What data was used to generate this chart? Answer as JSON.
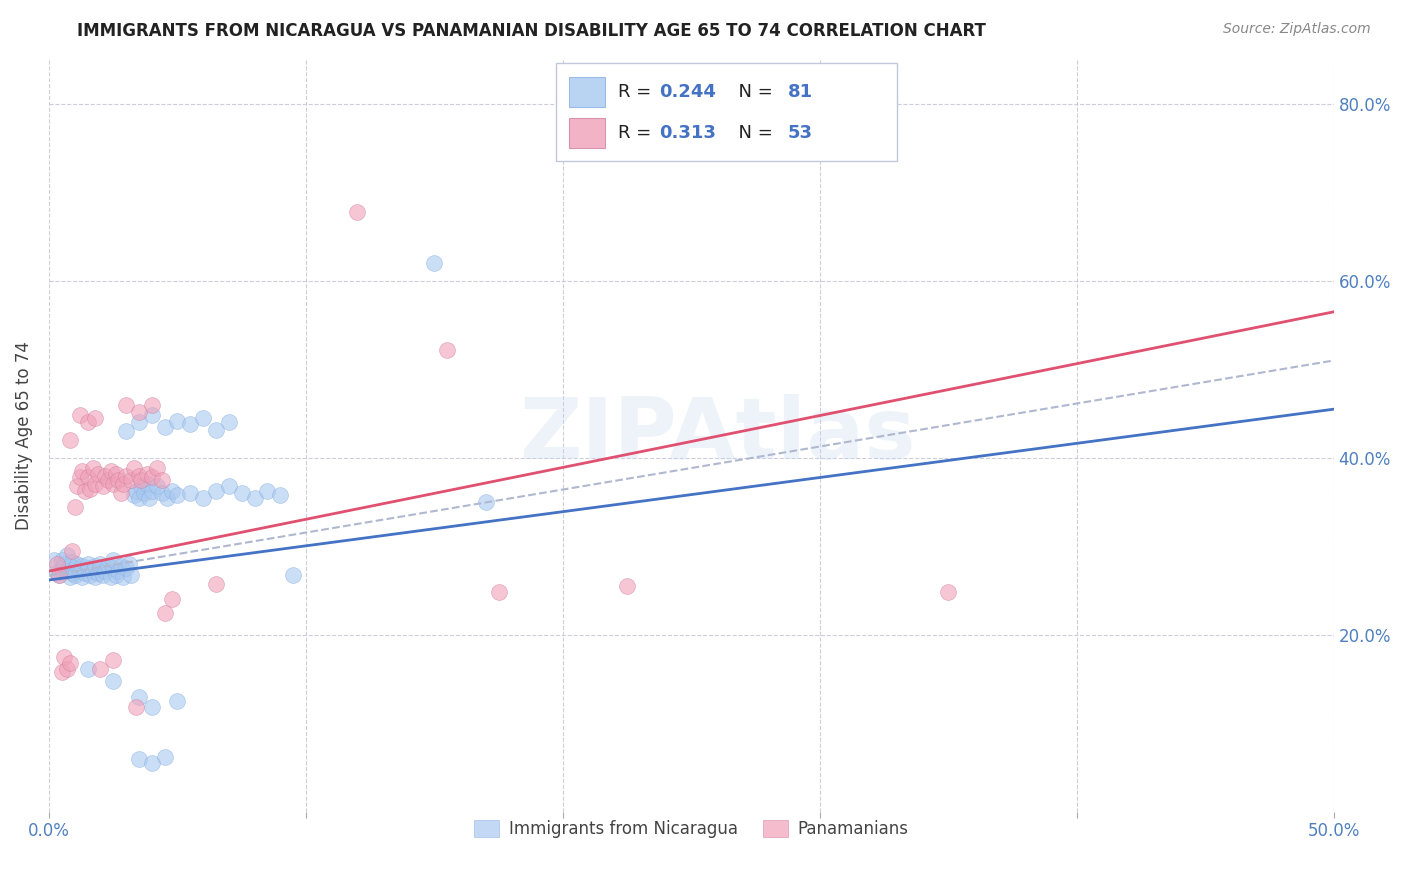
{
  "title": "IMMIGRANTS FROM NICARAGUA VS PANAMANIAN DISABILITY AGE 65 TO 74 CORRELATION CHART",
  "source": "Source: ZipAtlas.com",
  "ylabel_text": "Disability Age 65 to 74",
  "xmin": 0.0,
  "xmax": 0.5,
  "ymin": 0.0,
  "ymax": 0.85,
  "xtick_labels": [
    "0.0%",
    "",
    "",
    "",
    "",
    "50.0%"
  ],
  "xtick_values": [
    0.0,
    0.1,
    0.2,
    0.3,
    0.4,
    0.5
  ],
  "ytick_labels": [
    "20.0%",
    "40.0%",
    "60.0%",
    "80.0%"
  ],
  "ytick_values": [
    0.2,
    0.4,
    0.6,
    0.8
  ],
  "watermark": "ZIPAtlas",
  "blue_color": "#a8c8f0",
  "pink_color": "#f0a0b8",
  "blue_line_color": "#4472c4",
  "pink_line_color": "#e05070",
  "dashed_color": "#b0b8d0",
  "axis_label_color": "#5080c0",
  "grid_color": "#c8c8d8",
  "title_color": "#222222",
  "source_color": "#888888",
  "legend_r_color": "#222222",
  "legend_val_color": "#4472c4",
  "legend_n_color": "#222222",
  "legend_nval_color": "#4472c4",
  "scatter_blue": [
    [
      0.002,
      0.285
    ],
    [
      0.003,
      0.27
    ],
    [
      0.004,
      0.268
    ],
    [
      0.005,
      0.275
    ],
    [
      0.005,
      0.285
    ],
    [
      0.006,
      0.28
    ],
    [
      0.007,
      0.272
    ],
    [
      0.007,
      0.29
    ],
    [
      0.008,
      0.278
    ],
    [
      0.008,
      0.265
    ],
    [
      0.009,
      0.27
    ],
    [
      0.009,
      0.282
    ],
    [
      0.01,
      0.275
    ],
    [
      0.01,
      0.268
    ],
    [
      0.011,
      0.28
    ],
    [
      0.012,
      0.272
    ],
    [
      0.013,
      0.278
    ],
    [
      0.013,
      0.265
    ],
    [
      0.014,
      0.27
    ],
    [
      0.015,
      0.275
    ],
    [
      0.015,
      0.28
    ],
    [
      0.016,
      0.268
    ],
    [
      0.017,
      0.272
    ],
    [
      0.018,
      0.278
    ],
    [
      0.018,
      0.265
    ],
    [
      0.019,
      0.27
    ],
    [
      0.02,
      0.275
    ],
    [
      0.02,
      0.28
    ],
    [
      0.021,
      0.268
    ],
    [
      0.022,
      0.272
    ],
    [
      0.023,
      0.278
    ],
    [
      0.024,
      0.265
    ],
    [
      0.025,
      0.275
    ],
    [
      0.025,
      0.285
    ],
    [
      0.026,
      0.268
    ],
    [
      0.027,
      0.272
    ],
    [
      0.028,
      0.278
    ],
    [
      0.029,
      0.265
    ],
    [
      0.03,
      0.275
    ],
    [
      0.031,
      0.28
    ],
    [
      0.032,
      0.268
    ],
    [
      0.033,
      0.358
    ],
    [
      0.034,
      0.362
    ],
    [
      0.035,
      0.355
    ],
    [
      0.036,
      0.368
    ],
    [
      0.037,
      0.36
    ],
    [
      0.038,
      0.37
    ],
    [
      0.039,
      0.355
    ],
    [
      0.04,
      0.362
    ],
    [
      0.042,
      0.368
    ],
    [
      0.044,
      0.36
    ],
    [
      0.046,
      0.355
    ],
    [
      0.048,
      0.362
    ],
    [
      0.05,
      0.358
    ],
    [
      0.055,
      0.36
    ],
    [
      0.06,
      0.355
    ],
    [
      0.065,
      0.362
    ],
    [
      0.07,
      0.368
    ],
    [
      0.075,
      0.36
    ],
    [
      0.08,
      0.355
    ],
    [
      0.085,
      0.362
    ],
    [
      0.09,
      0.358
    ],
    [
      0.03,
      0.43
    ],
    [
      0.035,
      0.44
    ],
    [
      0.04,
      0.448
    ],
    [
      0.045,
      0.435
    ],
    [
      0.05,
      0.442
    ],
    [
      0.055,
      0.438
    ],
    [
      0.06,
      0.445
    ],
    [
      0.065,
      0.432
    ],
    [
      0.07,
      0.44
    ],
    [
      0.15,
      0.62
    ],
    [
      0.17,
      0.35
    ],
    [
      0.015,
      0.162
    ],
    [
      0.025,
      0.148
    ],
    [
      0.035,
      0.13
    ],
    [
      0.04,
      0.118
    ],
    [
      0.05,
      0.125
    ],
    [
      0.035,
      0.06
    ],
    [
      0.04,
      0.055
    ],
    [
      0.045,
      0.062
    ],
    [
      0.095,
      0.268
    ]
  ],
  "scatter_pink": [
    [
      0.003,
      0.28
    ],
    [
      0.004,
      0.268
    ],
    [
      0.005,
      0.158
    ],
    [
      0.006,
      0.175
    ],
    [
      0.007,
      0.162
    ],
    [
      0.008,
      0.168
    ],
    [
      0.008,
      0.42
    ],
    [
      0.009,
      0.295
    ],
    [
      0.01,
      0.345
    ],
    [
      0.011,
      0.368
    ],
    [
      0.012,
      0.378
    ],
    [
      0.012,
      0.448
    ],
    [
      0.013,
      0.385
    ],
    [
      0.014,
      0.362
    ],
    [
      0.015,
      0.378
    ],
    [
      0.015,
      0.44
    ],
    [
      0.016,
      0.365
    ],
    [
      0.017,
      0.388
    ],
    [
      0.018,
      0.37
    ],
    [
      0.018,
      0.445
    ],
    [
      0.019,
      0.382
    ],
    [
      0.02,
      0.162
    ],
    [
      0.021,
      0.368
    ],
    [
      0.022,
      0.38
    ],
    [
      0.023,
      0.375
    ],
    [
      0.024,
      0.385
    ],
    [
      0.025,
      0.37
    ],
    [
      0.025,
      0.172
    ],
    [
      0.026,
      0.382
    ],
    [
      0.027,
      0.375
    ],
    [
      0.028,
      0.36
    ],
    [
      0.029,
      0.37
    ],
    [
      0.03,
      0.38
    ],
    [
      0.03,
      0.46
    ],
    [
      0.032,
      0.375
    ],
    [
      0.033,
      0.388
    ],
    [
      0.034,
      0.118
    ],
    [
      0.035,
      0.38
    ],
    [
      0.035,
      0.452
    ],
    [
      0.036,
      0.375
    ],
    [
      0.038,
      0.382
    ],
    [
      0.04,
      0.378
    ],
    [
      0.04,
      0.46
    ],
    [
      0.042,
      0.388
    ],
    [
      0.044,
      0.375
    ],
    [
      0.045,
      0.225
    ],
    [
      0.048,
      0.24
    ],
    [
      0.065,
      0.258
    ],
    [
      0.12,
      0.678
    ],
    [
      0.155,
      0.522
    ],
    [
      0.175,
      0.248
    ],
    [
      0.225,
      0.255
    ],
    [
      0.35,
      0.248
    ]
  ],
  "blue_trend_x": [
    0.0,
    0.5
  ],
  "blue_trend_y": [
    0.262,
    0.455
  ],
  "pink_trend_x": [
    0.0,
    0.5
  ],
  "pink_trend_y": [
    0.272,
    0.565
  ],
  "dashed_trend_x": [
    0.0,
    0.5
  ],
  "dashed_trend_y": [
    0.267,
    0.51
  ]
}
